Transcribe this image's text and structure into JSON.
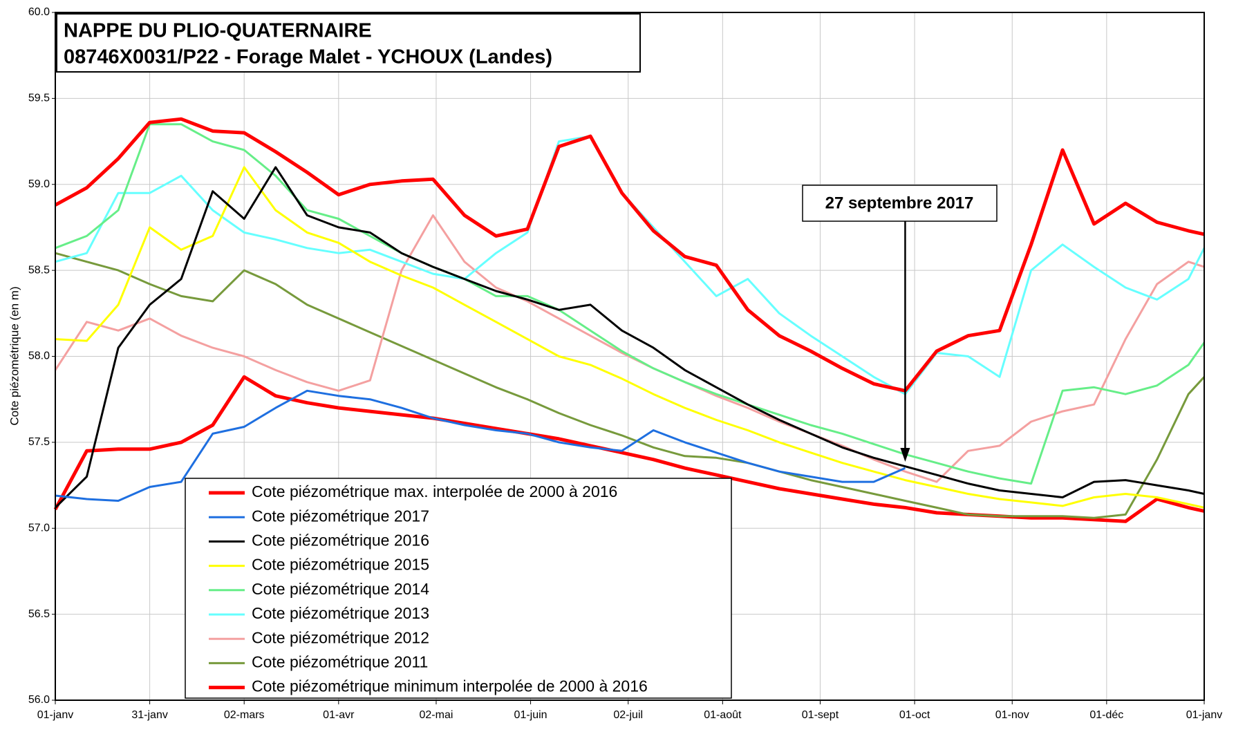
{
  "chart_data": {
    "type": "line",
    "title": [
      "NAPPE DU PLIO-QUATERNAIRE",
      "08746X0031/P22  - Forage Malet - YCHOUX (Landes)"
    ],
    "y_label": "Cote piézométrique (en m)",
    "annotation": {
      "text": "27 septembre 2017",
      "x": 270
    },
    "grid": true,
    "xlim": [
      0,
      365
    ],
    "xticks": [
      {
        "value": 0,
        "label": "01-janv"
      },
      {
        "value": 30,
        "label": "31-janv"
      },
      {
        "value": 60,
        "label": "02-mars"
      },
      {
        "value": 90,
        "label": "01-avr"
      },
      {
        "value": 121,
        "label": "02-mai"
      },
      {
        "value": 151,
        "label": "01-juin"
      },
      {
        "value": 182,
        "label": "02-juil"
      },
      {
        "value": 212,
        "label": "01-août"
      },
      {
        "value": 243,
        "label": "01-sept"
      },
      {
        "value": 273,
        "label": "01-oct"
      },
      {
        "value": 304,
        "label": "01-nov"
      },
      {
        "value": 334,
        "label": "01-déc"
      },
      {
        "value": 365,
        "label": "01-janv"
      }
    ],
    "ylim": [
      56,
      60
    ],
    "yticks": [
      {
        "value": 56,
        "label": "56.0"
      },
      {
        "value": 56.5,
        "label": "56.5"
      },
      {
        "value": 57,
        "label": "57.0"
      },
      {
        "value": 57.5,
        "label": "57.5"
      },
      {
        "value": 58,
        "label": "58.0"
      },
      {
        "value": 58.5,
        "label": "58.5"
      },
      {
        "value": 59,
        "label": "59.0"
      },
      {
        "value": 59.5,
        "label": "59.5"
      },
      {
        "value": 60,
        "label": "60.0"
      }
    ],
    "x": [
      0,
      10,
      20,
      30,
      40,
      50,
      60,
      70,
      80,
      90,
      100,
      110,
      120,
      130,
      140,
      150,
      160,
      170,
      180,
      190,
      200,
      210,
      220,
      230,
      240,
      250,
      260,
      270,
      280,
      290,
      300,
      310,
      320,
      330,
      340,
      350,
      360,
      365
    ],
    "series": [
      {
        "name": "Cote piézométrique max. interpolée de 2000 à 2016",
        "color": "#ff0000",
        "width": 5,
        "values": [
          58.88,
          58.98,
          59.15,
          59.36,
          59.38,
          59.31,
          59.3,
          59.19,
          59.07,
          58.94,
          59.0,
          59.02,
          59.03,
          58.82,
          58.7,
          58.74,
          59.22,
          59.28,
          58.95,
          58.73,
          58.58,
          58.53,
          58.27,
          58.12,
          58.03,
          57.93,
          57.84,
          57.8,
          58.03,
          58.12,
          58.15,
          58.65,
          59.2,
          58.77,
          58.89,
          58.78,
          58.73,
          58.71
        ]
      },
      {
        "name": "Cote piézométrique 2017",
        "color": "#1e6fe0",
        "width": 3,
        "values": [
          57.19,
          57.17,
          57.16,
          57.24,
          57.27,
          57.55,
          57.59,
          57.7,
          57.8,
          57.77,
          57.75,
          57.7,
          57.64,
          57.6,
          57.57,
          57.55,
          57.5,
          57.47,
          57.45,
          57.57,
          57.5,
          57.44,
          57.38,
          57.33,
          57.3,
          57.27,
          57.27,
          57.35,
          null,
          null,
          null,
          null,
          null,
          null,
          null,
          null,
          null,
          null
        ]
      },
      {
        "name": "Cote piézométrique 2016",
        "color": "#000000",
        "width": 3,
        "values": [
          57.12,
          57.3,
          58.05,
          58.3,
          58.45,
          58.96,
          58.8,
          59.1,
          58.82,
          58.75,
          58.72,
          58.6,
          58.52,
          58.45,
          58.38,
          58.33,
          58.27,
          58.3,
          58.15,
          58.05,
          57.92,
          57.82,
          57.72,
          57.63,
          57.55,
          57.47,
          57.41,
          57.36,
          57.31,
          57.26,
          57.22,
          57.2,
          57.18,
          57.27,
          57.28,
          57.25,
          57.22,
          57.2
        ]
      },
      {
        "name": "Cote piézométrique 2015",
        "color": "#ffff00",
        "width": 3,
        "values": [
          58.1,
          58.09,
          58.3,
          58.75,
          58.62,
          58.7,
          59.1,
          58.85,
          58.72,
          58.66,
          58.55,
          58.47,
          58.4,
          58.3,
          58.2,
          58.1,
          58.0,
          57.95,
          57.87,
          57.78,
          57.7,
          57.63,
          57.57,
          57.5,
          57.44,
          57.38,
          57.33,
          57.28,
          57.24,
          57.2,
          57.17,
          57.15,
          57.13,
          57.18,
          57.2,
          57.18,
          57.14,
          57.12
        ]
      },
      {
        "name": "Cote piézométrique 2014",
        "color": "#66ee88",
        "width": 3,
        "values": [
          58.63,
          58.7,
          58.85,
          59.35,
          59.35,
          59.25,
          59.2,
          59.05,
          58.85,
          58.8,
          58.7,
          58.6,
          58.52,
          58.45,
          58.35,
          58.35,
          58.27,
          58.15,
          58.03,
          57.93,
          57.85,
          57.78,
          57.72,
          57.66,
          57.6,
          57.55,
          57.49,
          57.43,
          57.38,
          57.33,
          57.29,
          57.26,
          57.8,
          57.82,
          57.78,
          57.83,
          57.95,
          58.08
        ]
      },
      {
        "name": "Cote piézométrique 2013",
        "color": "#66ffff",
        "width": 3,
        "values": [
          58.55,
          58.6,
          58.95,
          58.95,
          59.05,
          58.85,
          58.72,
          58.68,
          58.63,
          58.6,
          58.62,
          58.55,
          58.48,
          58.45,
          58.6,
          58.72,
          59.25,
          59.28,
          58.95,
          58.75,
          58.55,
          58.35,
          58.45,
          58.25,
          58.12,
          58.0,
          57.88,
          57.78,
          58.02,
          58.0,
          57.88,
          58.5,
          58.65,
          58.52,
          58.4,
          58.33,
          58.45,
          58.63
        ]
      },
      {
        "name": "Cote piézométrique 2012",
        "color": "#f4a0a0",
        "width": 3,
        "values": [
          57.92,
          58.2,
          58.15,
          58.22,
          58.12,
          58.05,
          58.0,
          57.92,
          57.85,
          57.8,
          57.86,
          58.5,
          58.82,
          58.55,
          58.4,
          58.32,
          58.22,
          58.12,
          58.02,
          57.93,
          57.85,
          57.77,
          57.7,
          57.62,
          57.55,
          57.48,
          57.4,
          57.33,
          57.27,
          57.45,
          57.48,
          57.62,
          57.68,
          57.72,
          58.1,
          58.42,
          58.55,
          58.52
        ]
      },
      {
        "name": "Cote piézométrique 2011",
        "color": "#779a3c",
        "width": 3,
        "values": [
          58.6,
          58.55,
          58.5,
          58.42,
          58.35,
          58.32,
          58.5,
          58.42,
          58.3,
          58.22,
          58.14,
          58.06,
          57.98,
          57.9,
          57.82,
          57.75,
          57.67,
          57.6,
          57.54,
          57.47,
          57.42,
          57.41,
          57.38,
          57.33,
          57.28,
          57.24,
          57.2,
          57.16,
          57.12,
          57.08,
          57.07,
          57.07,
          57.07,
          57.06,
          57.08,
          57.4,
          57.78,
          57.88
        ]
      },
      {
        "name": "Cote piézométrique minimum interpolée de 2000 à 2016",
        "color": "#ff0000",
        "width": 5,
        "values": [
          57.11,
          57.45,
          57.46,
          57.46,
          57.5,
          57.6,
          57.88,
          57.77,
          57.73,
          57.7,
          57.68,
          57.66,
          57.64,
          57.61,
          57.58,
          57.55,
          57.52,
          57.48,
          57.44,
          57.4,
          57.35,
          57.31,
          57.27,
          57.23,
          57.2,
          57.17,
          57.14,
          57.12,
          57.09,
          57.08,
          57.07,
          57.06,
          57.06,
          57.05,
          57.04,
          57.17,
          57.12,
          57.1
        ]
      }
    ]
  }
}
